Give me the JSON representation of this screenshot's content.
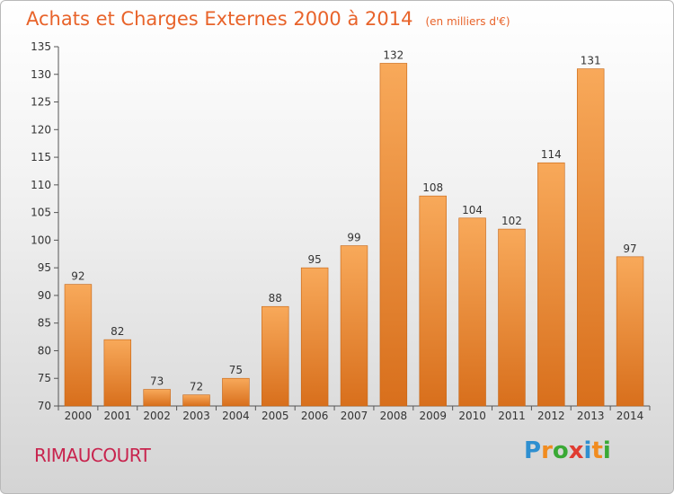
{
  "header": {
    "title": "Achats et Charges Externes 2000 à 2014",
    "unit": "(en milliers d'€)"
  },
  "footer": {
    "town": "RIMAUCOURT",
    "logo_letters": [
      "P",
      "r",
      "o",
      "x",
      "i",
      "t",
      "i"
    ],
    "logo_colors": [
      "#2e8fd0",
      "#f18c1f",
      "#3aa935",
      "#e03c31",
      "#2e8fd0",
      "#f18c1f",
      "#3aa935"
    ]
  },
  "colors": {
    "bar_light": "#f8a95a",
    "bar_dark": "#d86f1c",
    "title": "#e8632a",
    "town": "#c8244e"
  },
  "chart_data": {
    "type": "bar",
    "title": "Achats et Charges Externes 2000 à 2014",
    "subtitle": "(en milliers d'€)",
    "xlabel": "",
    "ylabel": "",
    "categories": [
      "2000",
      "2001",
      "2002",
      "2003",
      "2004",
      "2005",
      "2006",
      "2007",
      "2008",
      "2009",
      "2010",
      "2011",
      "2012",
      "2013",
      "2014"
    ],
    "values": [
      92,
      82,
      73,
      72,
      75,
      88,
      95,
      99,
      132,
      108,
      104,
      102,
      114,
      131,
      97
    ],
    "ylim": [
      70,
      135
    ],
    "yticks": [
      70,
      75,
      80,
      85,
      90,
      95,
      100,
      105,
      110,
      115,
      120,
      125,
      130,
      135
    ],
    "grid": false,
    "legend": "none"
  }
}
